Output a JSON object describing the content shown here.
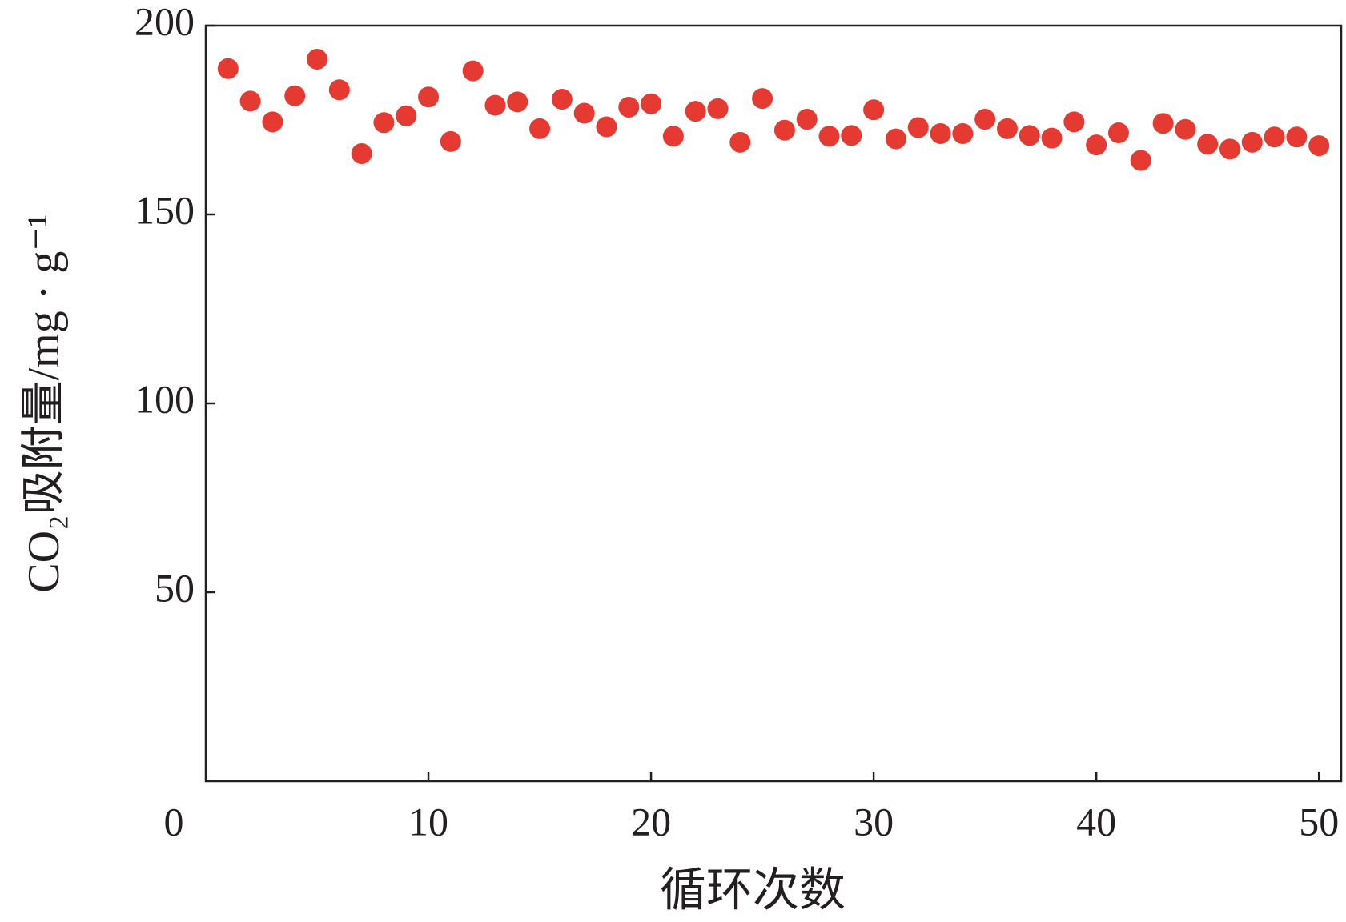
{
  "chart_data": {
    "type": "scatter",
    "x_label": "循环次数",
    "y_label": "CO₂吸附量/mg · g⁻¹",
    "x": [
      1,
      2,
      3,
      4,
      5,
      6,
      7,
      8,
      9,
      10,
      11,
      12,
      13,
      14,
      15,
      16,
      17,
      18,
      19,
      20,
      21,
      22,
      23,
      24,
      25,
      26,
      27,
      28,
      29,
      30,
      31,
      32,
      33,
      34,
      35,
      36,
      37,
      38,
      39,
      40,
      41,
      42,
      43,
      44,
      45,
      46,
      47,
      48,
      49,
      50
    ],
    "series": [
      {
        "color": "#e53a32",
        "values": [
          188.6,
          180,
          174.5,
          181.4,
          191.1,
          183,
          166.1,
          174.3,
          176.1,
          181.1,
          169.3,
          188,
          178.9,
          179.8,
          172.7,
          180.5,
          176.8,
          173.2,
          178.4,
          179.3,
          170.7,
          177.3,
          178,
          169.1,
          180.7,
          172.3,
          175.2,
          170.7,
          170.9,
          177.7,
          170,
          173,
          171.4,
          171.4,
          175.2,
          172.7,
          170.9,
          170.2,
          174.5,
          168.4,
          171.6,
          164.3,
          174.1,
          172.5,
          168.6,
          167.3,
          169.1,
          170.5,
          170.5,
          168.2
        ]
      }
    ],
    "xlim": [
      0,
      51
    ],
    "xticks": [
      0,
      10,
      20,
      30,
      40,
      50
    ],
    "ylim": [
      0,
      200
    ],
    "yticks": [
      50,
      100,
      150,
      200
    ]
  }
}
